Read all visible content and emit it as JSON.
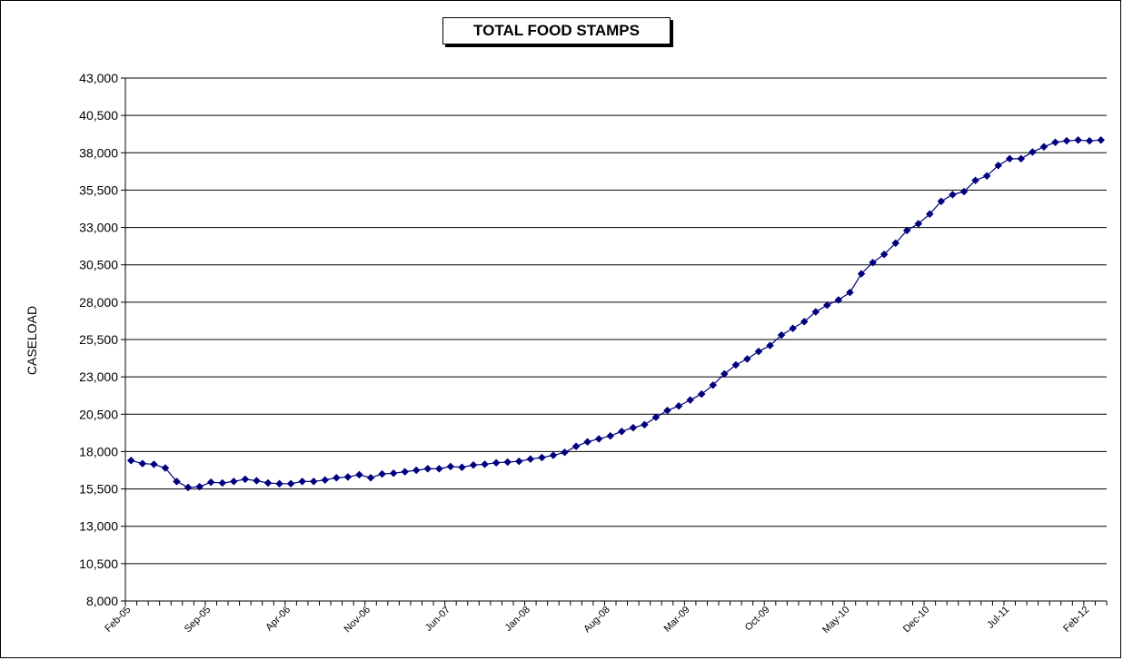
{
  "chart_data": {
    "type": "line",
    "title": "TOTAL FOOD STAMPS",
    "xlabel": "",
    "ylabel": "CASELOAD",
    "ylim": [
      8000,
      43000
    ],
    "y_ticks": [
      "8,000",
      "10,500",
      "13,000",
      "15,500",
      "18,000",
      "20,500",
      "23,000",
      "25,500",
      "28,000",
      "30,500",
      "33,000",
      "35,500",
      "38,000",
      "40,500",
      "43,000"
    ],
    "x_tick_labels": [
      "Feb-05",
      "Sep-05",
      "Apr-06",
      "Nov-06",
      "Jun-07",
      "Jan-08",
      "Aug-08",
      "Mar-09",
      "Oct-09",
      "May-10",
      "Dec-10",
      "Jul-11",
      "Feb-12"
    ],
    "x_start": "Feb-05",
    "x_end": "Feb-12",
    "grid": "horizontal",
    "marker": "diamond",
    "colors": {
      "series": "#00007f",
      "grid": "#000000"
    },
    "series": [
      {
        "values": [
          17400,
          17200,
          17150,
          16900,
          16000,
          15600,
          15650,
          15950,
          15900,
          16000,
          16150,
          16050,
          15900,
          15850,
          15850,
          16000,
          16000,
          16100,
          16250,
          16300,
          16450,
          16250,
          16500,
          16550,
          16650,
          16750,
          16850,
          16850,
          17000,
          16950,
          17100,
          17150,
          17250,
          17300,
          17350,
          17500,
          17600,
          17750,
          17950,
          18350,
          18650,
          18850,
          19050,
          19350,
          19600,
          19800,
          20300,
          20750,
          21050,
          21450,
          21850,
          22450,
          23200,
          23800,
          24200,
          24700,
          25100,
          25800,
          26250,
          26700,
          27350,
          27800,
          28150,
          28650,
          29900,
          30650,
          31200,
          31950,
          32800,
          33250,
          33900,
          34750,
          35200,
          35400,
          36150,
          36450,
          37150,
          37600,
          37600,
          38050,
          38400,
          38700,
          38800,
          38850,
          38800,
          38850
        ]
      }
    ]
  }
}
